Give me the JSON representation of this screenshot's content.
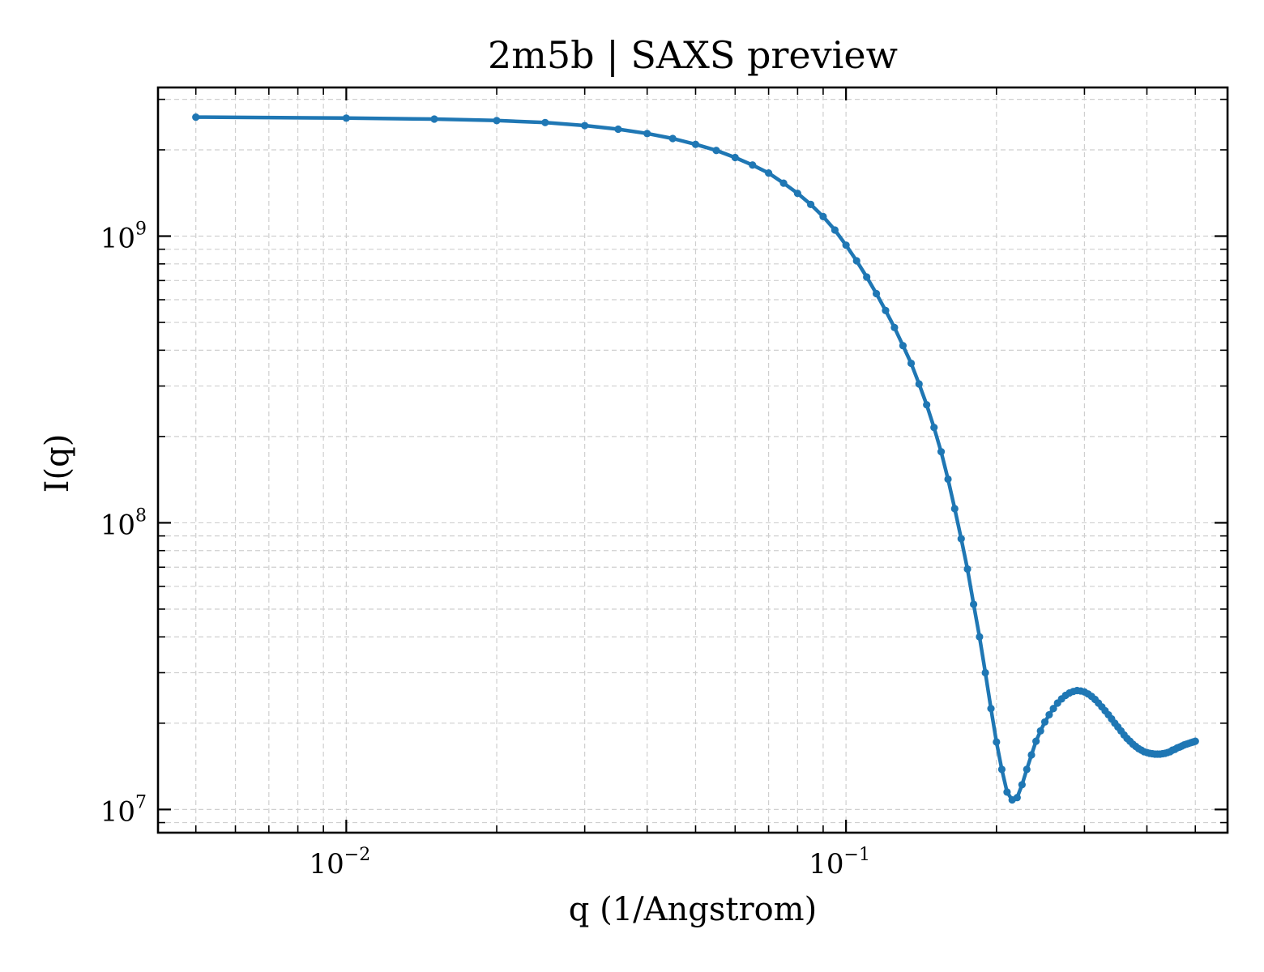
{
  "chart_data": {
    "type": "line",
    "title": "2m5b | SAXS preview",
    "xlabel": "q (1/Angstrom)",
    "ylabel": "I(q)",
    "xscale": "log",
    "yscale": "log",
    "xlim": [
      0.0042,
      0.58
    ],
    "ylim": [
      8300000.0,
      3300000000.0
    ],
    "grid": true,
    "x_tick_labels": [
      {
        "base": "10",
        "exp": "−2"
      },
      {
        "base": "10",
        "exp": "−1"
      }
    ],
    "y_tick_labels": [
      {
        "base": "10",
        "exp": "7"
      },
      {
        "base": "10",
        "exp": "8"
      },
      {
        "base": "10",
        "exp": "9"
      }
    ],
    "series_color": "#1f77b4",
    "series": [
      {
        "x": [
          0.005,
          0.01,
          0.015,
          0.02,
          0.025,
          0.03,
          0.035,
          0.04,
          0.045,
          0.05,
          0.055,
          0.06,
          0.065,
          0.07,
          0.075,
          0.08,
          0.085,
          0.09,
          0.095,
          0.1,
          0.105,
          0.11,
          0.115,
          0.12,
          0.125,
          0.13,
          0.135,
          0.14,
          0.145,
          0.15,
          0.155,
          0.16,
          0.165,
          0.17,
          0.175,
          0.18,
          0.185,
          0.19,
          0.195,
          0.2,
          0.205,
          0.21,
          0.215,
          0.22,
          0.225,
          0.23,
          0.235,
          0.24,
          0.245,
          0.25,
          0.255,
          0.26,
          0.265,
          0.27,
          0.275,
          0.28,
          0.285,
          0.29,
          0.295,
          0.3,
          0.305,
          0.31,
          0.315,
          0.32,
          0.325,
          0.33,
          0.335,
          0.34,
          0.345,
          0.35,
          0.355,
          0.36,
          0.365,
          0.37,
          0.375,
          0.38,
          0.385,
          0.39,
          0.395,
          0.4,
          0.405,
          0.41,
          0.415,
          0.42,
          0.425,
          0.43,
          0.435,
          0.44,
          0.445,
          0.45,
          0.455,
          0.46,
          0.465,
          0.47,
          0.475,
          0.48,
          0.485,
          0.49,
          0.495,
          0.5
        ],
        "y": [
          2600000000.0,
          2580000000.0,
          2560000000.0,
          2530000000.0,
          2490000000.0,
          2430000000.0,
          2360000000.0,
          2280000000.0,
          2190000000.0,
          2090000000.0,
          1990000000.0,
          1880000000.0,
          1770000000.0,
          1660000000.0,
          1530000000.0,
          1410000000.0,
          1290000000.0,
          1170000000.0,
          1050000000.0,
          930000000.0,
          820000000.0,
          720000000.0,
          630000000.0,
          550000000.0,
          480000000.0,
          415000000.0,
          360000000.0,
          305000000.0,
          258000000.0,
          215000000.0,
          177000000.0,
          142000000.0,
          112000000.0,
          88000000.0,
          69000000.0,
          52000000.0,
          40000000.0,
          30000000.0,
          22500000.0,
          17200000.0,
          13800000.0,
          11500000.0,
          10800000.0,
          11000000.0,
          12200000.0,
          13800000.0,
          15500000.0,
          17300000.0,
          18800000.0,
          20200000.0,
          21400000.0,
          22500000.0,
          23500000.0,
          24300000.0,
          25000000.0,
          25500000.0,
          25800000.0,
          26000000.0,
          25900000.0,
          25700000.0,
          25300000.0,
          24800000.0,
          24200000.0,
          23500000.0,
          22800000.0,
          22100000.0,
          21400000.0,
          20700000.0,
          20000000.0,
          19400000.0,
          18800000.0,
          18200000.0,
          17700000.0,
          17300000.0,
          16900000.0,
          16600000.0,
          16300000.0,
          16100000.0,
          15900000.0,
          15800000.0,
          15700000.0,
          15650000.0,
          15600000.0,
          15600000.0,
          15600000.0,
          15650000.0,
          15700000.0,
          15800000.0,
          15900000.0,
          16100000.0,
          16200000.0,
          16400000.0,
          16500000.0,
          16650000.0,
          16800000.0,
          16900000.0,
          17000000.0,
          17100000.0,
          17200000.0,
          17300000.0
        ]
      }
    ]
  }
}
